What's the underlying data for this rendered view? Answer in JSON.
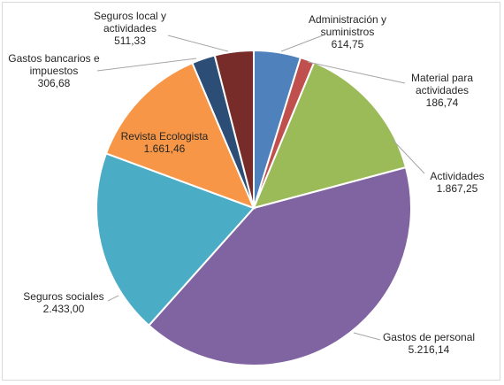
{
  "chart_data": {
    "type": "pie",
    "start_angle_deg": 0,
    "direction": "clockwise",
    "slices": [
      {
        "label": [
          "Administración y",
          "suministros"
        ],
        "value_text": "614,75",
        "value": 614.75,
        "color": "#4f81bd"
      },
      {
        "label": [
          "Material para",
          "actividades"
        ],
        "value_text": "186,74",
        "value": 186.74,
        "color": "#c0504d"
      },
      {
        "label": [
          "Actividades"
        ],
        "value_text": "1.867,25",
        "value": 1867.25,
        "color": "#9bbb59"
      },
      {
        "label": [
          "Gastos de personal"
        ],
        "value_text": "5.216,14",
        "value": 5216.14,
        "color": "#8064a2"
      },
      {
        "label": [
          "Seguros sociales"
        ],
        "value_text": "2.433,00",
        "value": 2433.0,
        "color": "#4bacc6"
      },
      {
        "label": [
          "Revista Ecologista"
        ],
        "value_text": "1.661,46",
        "value": 1661.46,
        "color": "#f79646"
      },
      {
        "label": [
          "Gastos bancarios e",
          "impuestos"
        ],
        "value_text": "306,68",
        "value": 306.68,
        "color": "#2c4d75"
      },
      {
        "label": [
          "Seguros local y",
          "actividades"
        ],
        "value_text": "511,33",
        "value": 511.33,
        "color": "#772c2a"
      }
    ]
  }
}
